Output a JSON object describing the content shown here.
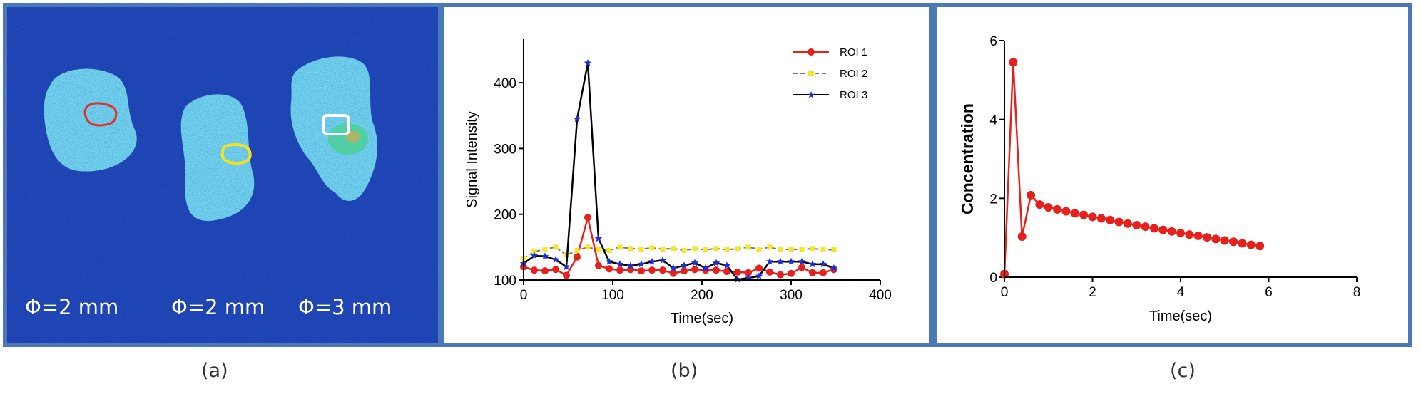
{
  "panel_a": {
    "labels": [
      "Φ=2 mm",
      "Φ=2 mm",
      "Φ=3 mm"
    ],
    "background_color": "#12239a",
    "roi_colors": [
      "#e0302a",
      "#f2e21a",
      "#ffffff"
    ]
  },
  "captions": {
    "a": "(a)",
    "b": "(b)",
    "c": "(c)"
  },
  "chart_data": [
    {
      "id": "b",
      "type": "line",
      "title": "",
      "xlabel": "Time(sec)",
      "ylabel": "Signal Intensity",
      "xlim": [
        0,
        400
      ],
      "ylim": [
        100,
        450
      ],
      "xticks": [
        0,
        100,
        200,
        300,
        400
      ],
      "yticks": [
        100,
        200,
        300,
        400
      ],
      "legend_position": "top-right",
      "x": [
        0,
        12,
        24,
        36,
        48,
        60,
        72,
        84,
        96,
        108,
        120,
        132,
        144,
        156,
        168,
        180,
        192,
        204,
        216,
        228,
        240,
        252,
        264,
        276,
        288,
        300,
        312,
        324,
        336,
        348
      ],
      "series": [
        {
          "name": "ROI 1",
          "color": "#e8201c",
          "line": "#e8201c",
          "marker": "circle",
          "values": [
            120,
            115,
            114,
            116,
            107,
            135,
            195,
            122,
            117,
            115,
            116,
            114,
            115,
            115,
            110,
            114,
            116,
            115,
            115,
            113,
            112,
            111,
            118,
            112,
            108,
            110,
            119,
            111,
            111,
            116
          ]
        },
        {
          "name": "ROI 2",
          "color": "#f5e62a",
          "line": "#777777",
          "marker": "square",
          "values": [
            133,
            143,
            147,
            150,
            138,
            145,
            150,
            146,
            145,
            150,
            148,
            147,
            149,
            147,
            148,
            145,
            148,
            146,
            148,
            146,
            148,
            150,
            147,
            150,
            146,
            147,
            146,
            148,
            146,
            146
          ]
        },
        {
          "name": "ROI 3",
          "color": "#1f2fd0",
          "line": "#000000",
          "marker": "star",
          "values": [
            125,
            137,
            136,
            131,
            120,
            345,
            430,
            163,
            128,
            124,
            122,
            124,
            128,
            130,
            118,
            122,
            126,
            118,
            126,
            122,
            101,
            103,
            106,
            128,
            128,
            128,
            128,
            124,
            124,
            118
          ]
        }
      ]
    },
    {
      "id": "c",
      "type": "line",
      "title": "",
      "xlabel": "Time(sec)",
      "ylabel": "Concentration",
      "xlim": [
        0,
        8
      ],
      "ylim": [
        0,
        6
      ],
      "xticks": [
        0,
        2,
        4,
        6,
        8
      ],
      "yticks": [
        0,
        2,
        4,
        6
      ],
      "grid": false,
      "series": [
        {
          "name": "Concentration",
          "color": "#e8201c",
          "line": "#e8201c",
          "marker": "circle",
          "x": [
            0,
            0.2,
            0.4,
            0.6,
            0.8,
            1.0,
            1.2,
            1.4,
            1.6,
            1.8,
            2.0,
            2.2,
            2.4,
            2.6,
            2.8,
            3.0,
            3.2,
            3.4,
            3.6,
            3.8,
            4.0,
            4.2,
            4.4,
            4.6,
            4.8,
            5.0,
            5.2,
            5.4,
            5.6,
            5.8
          ],
          "values": [
            0.08,
            5.45,
            1.03,
            2.08,
            1.84,
            1.77,
            1.72,
            1.67,
            1.62,
            1.58,
            1.53,
            1.49,
            1.45,
            1.4,
            1.36,
            1.32,
            1.28,
            1.24,
            1.2,
            1.16,
            1.12,
            1.08,
            1.05,
            1.01,
            0.97,
            0.93,
            0.9,
            0.86,
            0.82,
            0.79
          ]
        }
      ]
    }
  ]
}
